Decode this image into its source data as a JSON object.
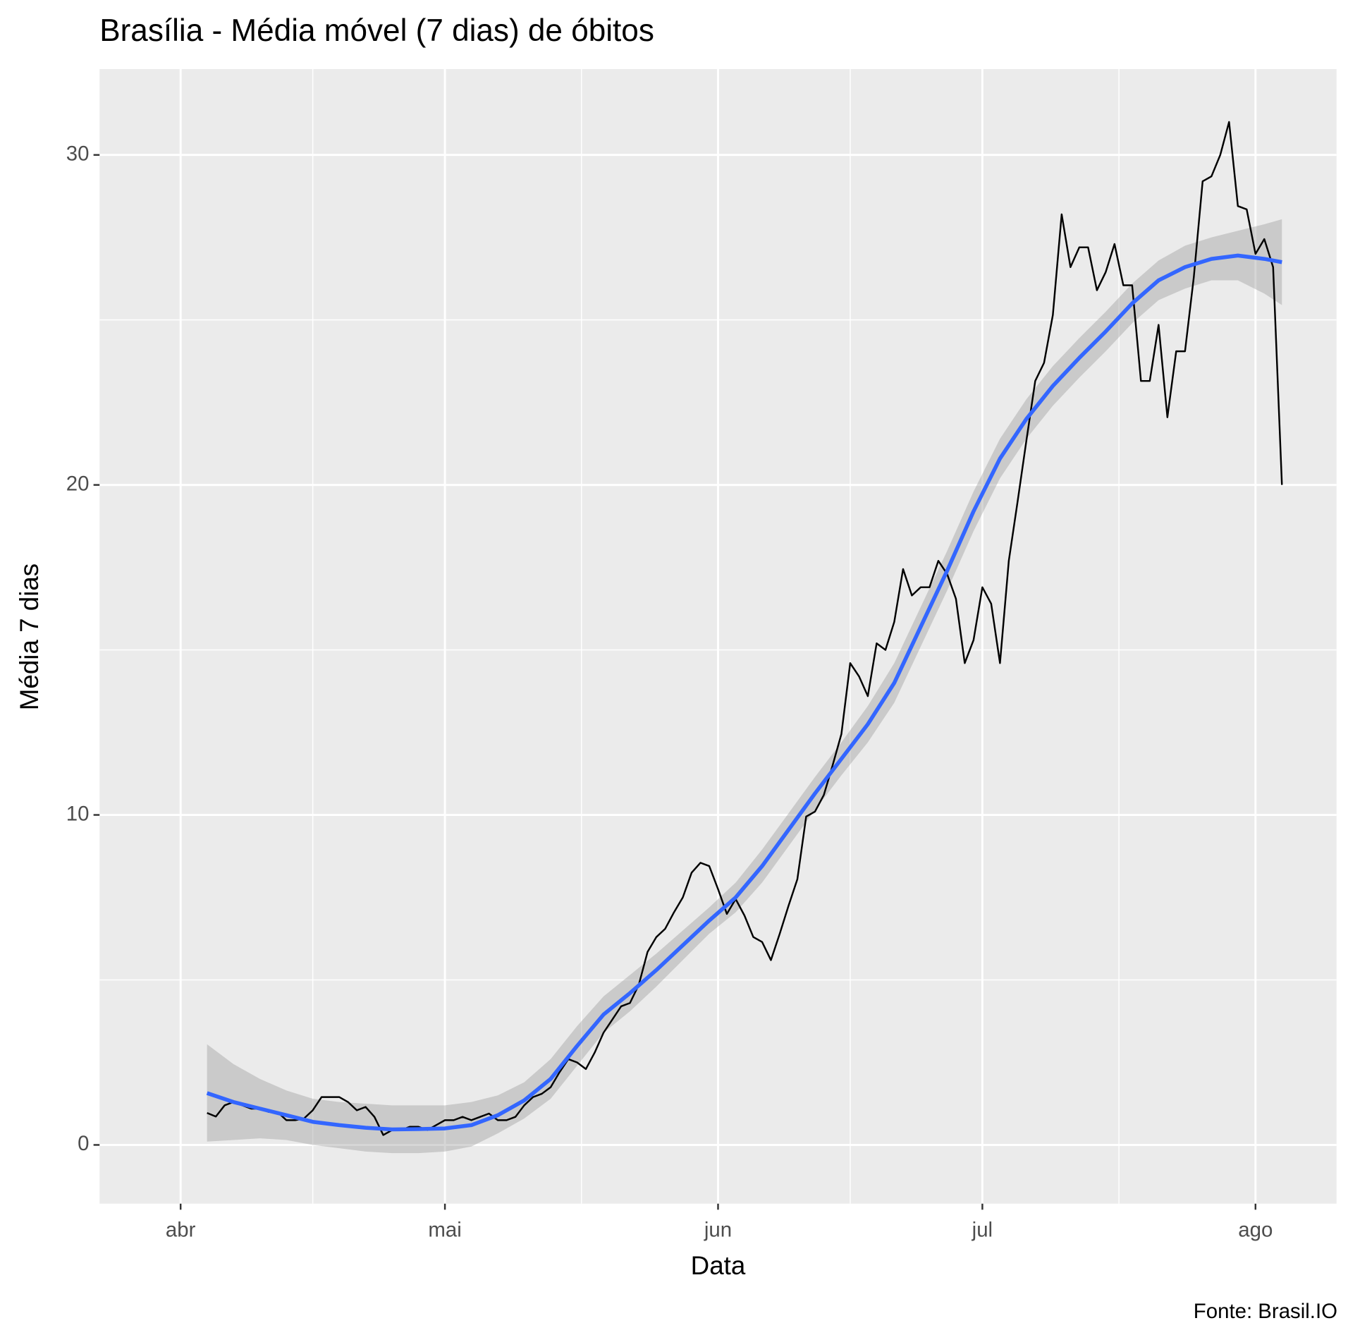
{
  "chart_data": {
    "type": "line",
    "title": "Brasília - Média móvel (7 dias) de óbitos",
    "x_label": "Data",
    "y_label": "Média 7 dias",
    "caption": "Fonte: Brasil.IO",
    "xlim": [
      -9.2,
      131.2
    ],
    "ylim": [
      -1.78,
      32.6
    ],
    "xticks": [
      {
        "value": 0,
        "label": "abr"
      },
      {
        "value": 30,
        "label": "mai"
      },
      {
        "value": 61,
        "label": "jun"
      },
      {
        "value": 91,
        "label": "jul"
      },
      {
        "value": 122,
        "label": "ago"
      }
    ],
    "xminor": [
      15,
      45.5,
      76,
      106.5
    ],
    "yticks": [
      0,
      10,
      20,
      30
    ],
    "yminor": [
      5,
      15,
      25
    ],
    "grid": true,
    "panel_color": "#ebebeb",
    "series": [
      {
        "color": "#000000",
        "x": [
          3,
          4,
          5,
          6,
          7,
          8,
          9,
          10,
          11,
          12,
          13,
          14,
          15,
          16,
          17,
          18,
          19,
          20,
          21,
          22,
          23,
          24,
          25,
          26,
          27,
          28,
          29,
          30,
          31,
          32,
          33,
          34,
          35,
          36,
          37,
          38,
          39,
          40,
          41,
          42,
          43,
          44,
          45,
          46,
          47,
          48,
          49,
          50,
          51,
          52,
          53,
          54,
          55,
          56,
          57,
          58,
          59,
          60,
          61,
          62,
          63,
          64,
          65,
          66,
          67,
          68,
          69,
          70,
          71,
          72,
          73,
          74,
          75,
          76,
          77,
          78,
          79,
          80,
          81,
          82,
          83,
          84,
          85,
          86,
          87,
          88,
          89,
          90,
          91,
          92,
          93,
          94,
          95,
          96,
          97,
          98,
          99,
          100,
          101,
          102,
          103,
          104,
          105,
          106,
          107,
          108,
          109,
          110,
          111,
          112,
          113,
          114,
          115,
          116,
          117,
          118,
          119,
          120,
          121,
          122,
          123,
          124,
          125
        ],
        "values": [
          0.97,
          0.86,
          1.2,
          1.3,
          1.2,
          1.1,
          1.1,
          1.0,
          1.0,
          0.75,
          0.75,
          0.8,
          1.05,
          1.45,
          1.45,
          1.45,
          1.3,
          1.05,
          1.15,
          0.85,
          0.3,
          0.45,
          0.45,
          0.55,
          0.55,
          0.45,
          0.6,
          0.75,
          0.75,
          0.85,
          0.75,
          0.85,
          0.95,
          0.75,
          0.75,
          0.85,
          1.2,
          1.45,
          1.55,
          1.75,
          2.2,
          2.6,
          2.5,
          2.3,
          2.8,
          3.4,
          3.8,
          4.2,
          4.3,
          4.85,
          5.85,
          6.3,
          6.55,
          7.05,
          7.5,
          8.25,
          8.55,
          8.45,
          7.75,
          7.0,
          7.45,
          6.95,
          6.3,
          6.15,
          5.6,
          6.4,
          7.25,
          8.05,
          9.95,
          10.1,
          10.6,
          11.5,
          12.45,
          14.6,
          14.2,
          13.6,
          15.2,
          15.0,
          15.85,
          17.45,
          16.65,
          16.9,
          16.9,
          17.7,
          17.3,
          16.55,
          14.6,
          15.3,
          16.9,
          16.4,
          14.6,
          17.7,
          19.5,
          21.35,
          23.15,
          23.7,
          25.15,
          28.2,
          26.6,
          27.2,
          27.2,
          25.9,
          26.45,
          27.3,
          26.05,
          26.05,
          23.15,
          23.15,
          24.85,
          22.05,
          24.05,
          24.05,
          26.3,
          29.2,
          29.35,
          30.0,
          31.0,
          28.45,
          28.35,
          27.0,
          27.45,
          26.6,
          20.0
        ]
      },
      {
        "color": "#3366ff",
        "fill": "#999999",
        "x": [
          3,
          6,
          9,
          12,
          15,
          18,
          21,
          24,
          27,
          30,
          33,
          36,
          39,
          42,
          45,
          48,
          51,
          54,
          57,
          60,
          63,
          66,
          69,
          72,
          75,
          78,
          81,
          84,
          87,
          90,
          93,
          96,
          99,
          102,
          105,
          108,
          111,
          114,
          117,
          120,
          123,
          125
        ],
        "values": [
          1.57,
          1.3,
          1.1,
          0.9,
          0.7,
          0.6,
          0.52,
          0.47,
          0.48,
          0.5,
          0.6,
          0.9,
          1.35,
          2.0,
          3.0,
          3.95,
          4.6,
          5.3,
          6.05,
          6.8,
          7.5,
          8.45,
          9.55,
          10.65,
          11.7,
          12.75,
          14.0,
          15.7,
          17.4,
          19.2,
          20.8,
          22.0,
          23.0,
          23.85,
          24.65,
          25.5,
          26.2,
          26.6,
          26.85,
          26.95,
          26.85,
          26.75
        ],
        "ci_low": [
          0.1,
          0.15,
          0.2,
          0.15,
          0.0,
          -0.1,
          -0.2,
          -0.25,
          -0.25,
          -0.2,
          -0.05,
          0.35,
          0.8,
          1.4,
          2.4,
          3.4,
          4.05,
          4.8,
          5.6,
          6.4,
          7.05,
          7.95,
          9.05,
          10.15,
          11.2,
          12.2,
          13.4,
          15.1,
          16.8,
          18.6,
          20.2,
          21.4,
          22.4,
          23.25,
          24.05,
          24.9,
          25.6,
          25.95,
          26.2,
          26.2,
          25.8,
          25.45
        ],
        "ci_high": [
          3.05,
          2.45,
          2.0,
          1.65,
          1.4,
          1.3,
          1.25,
          1.2,
          1.2,
          1.2,
          1.3,
          1.5,
          1.9,
          2.6,
          3.6,
          4.5,
          5.15,
          5.8,
          6.5,
          7.2,
          7.95,
          8.95,
          10.05,
          11.15,
          12.2,
          13.3,
          14.6,
          16.3,
          18.0,
          19.8,
          21.4,
          22.6,
          23.6,
          24.45,
          25.25,
          26.1,
          26.8,
          27.25,
          27.5,
          27.7,
          27.9,
          28.05
        ]
      }
    ]
  }
}
